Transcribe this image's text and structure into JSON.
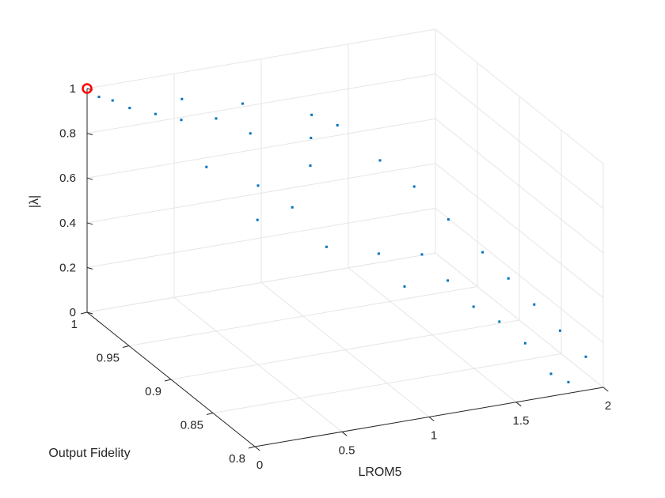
{
  "chart_data": {
    "type": "scatter",
    "projection": "3d",
    "title": "",
    "xlabel": "LROM5",
    "ylabel": "Output Fidelity",
    "zlabel": "|λ|",
    "xlim": [
      0,
      2
    ],
    "ylim": [
      0.8,
      1
    ],
    "zlim": [
      0,
      1
    ],
    "xticks": [
      "0",
      "0.5",
      "1",
      "1.5",
      "2"
    ],
    "yticks": [
      "0.8",
      "0.85",
      "0.9",
      "0.95",
      "1"
    ],
    "zticks": [
      "0",
      "0.2",
      "0.4",
      "0.6",
      "0.8",
      "1"
    ],
    "grid": true,
    "series": [
      {
        "marker": "dot",
        "color": "#0072BD",
        "points": [
          {
            "x": 0.02,
            "y": 0.99,
            "z": 0.99
          },
          {
            "x": 0.05,
            "y": 0.98,
            "z": 1.0
          },
          {
            "x": 0.1,
            "y": 0.97,
            "z": 0.99
          },
          {
            "x": 0.2,
            "y": 0.96,
            "z": 0.98
          },
          {
            "x": 0.3,
            "y": 0.95,
            "z": 0.97
          },
          {
            "x": 0.4,
            "y": 0.97,
            "z": 0.99
          },
          {
            "x": 0.5,
            "y": 0.95,
            "z": 0.95
          },
          {
            "x": 0.6,
            "y": 0.93,
            "z": 0.93
          },
          {
            "x": 0.7,
            "y": 0.96,
            "z": 0.96
          },
          {
            "x": 0.3,
            "y": 0.92,
            "z": 0.85
          },
          {
            "x": 0.5,
            "y": 0.9,
            "z": 0.8
          },
          {
            "x": 0.4,
            "y": 0.88,
            "z": 0.72
          },
          {
            "x": 0.6,
            "y": 0.88,
            "z": 0.75
          },
          {
            "x": 0.7,
            "y": 0.86,
            "z": 0.62
          },
          {
            "x": 0.8,
            "y": 0.9,
            "z": 0.85
          },
          {
            "x": 0.9,
            "y": 0.92,
            "z": 0.9
          },
          {
            "x": 1.0,
            "y": 0.94,
            "z": 0.93
          },
          {
            "x": 1.1,
            "y": 0.93,
            "z": 0.9
          },
          {
            "x": 1.2,
            "y": 0.9,
            "z": 0.82
          },
          {
            "x": 1.3,
            "y": 0.88,
            "z": 0.75
          },
          {
            "x": 1.4,
            "y": 0.86,
            "z": 0.65
          },
          {
            "x": 1.5,
            "y": 0.84,
            "z": 0.55
          },
          {
            "x": 1.6,
            "y": 0.83,
            "z": 0.45
          },
          {
            "x": 1.7,
            "y": 0.82,
            "z": 0.35
          },
          {
            "x": 1.8,
            "y": 0.81,
            "z": 0.25
          },
          {
            "x": 1.9,
            "y": 0.8,
            "z": 0.15
          },
          {
            "x": 1.2,
            "y": 0.85,
            "z": 0.55
          },
          {
            "x": 1.3,
            "y": 0.84,
            "z": 0.45
          },
          {
            "x": 1.4,
            "y": 0.83,
            "z": 0.35
          },
          {
            "x": 1.0,
            "y": 0.86,
            "z": 0.55
          },
          {
            "x": 1.1,
            "y": 0.85,
            "z": 0.42
          },
          {
            "x": 1.5,
            "y": 0.82,
            "z": 0.3
          },
          {
            "x": 1.6,
            "y": 0.81,
            "z": 0.22
          },
          {
            "x": 1.7,
            "y": 0.8,
            "z": 0.1
          },
          {
            "x": 1.8,
            "y": 0.8,
            "z": 0.05
          }
        ]
      },
      {
        "marker": "circle",
        "color": "#FF0000",
        "points": [
          {
            "x": 0.0,
            "y": 1.0,
            "z": 1.0
          }
        ]
      }
    ]
  }
}
